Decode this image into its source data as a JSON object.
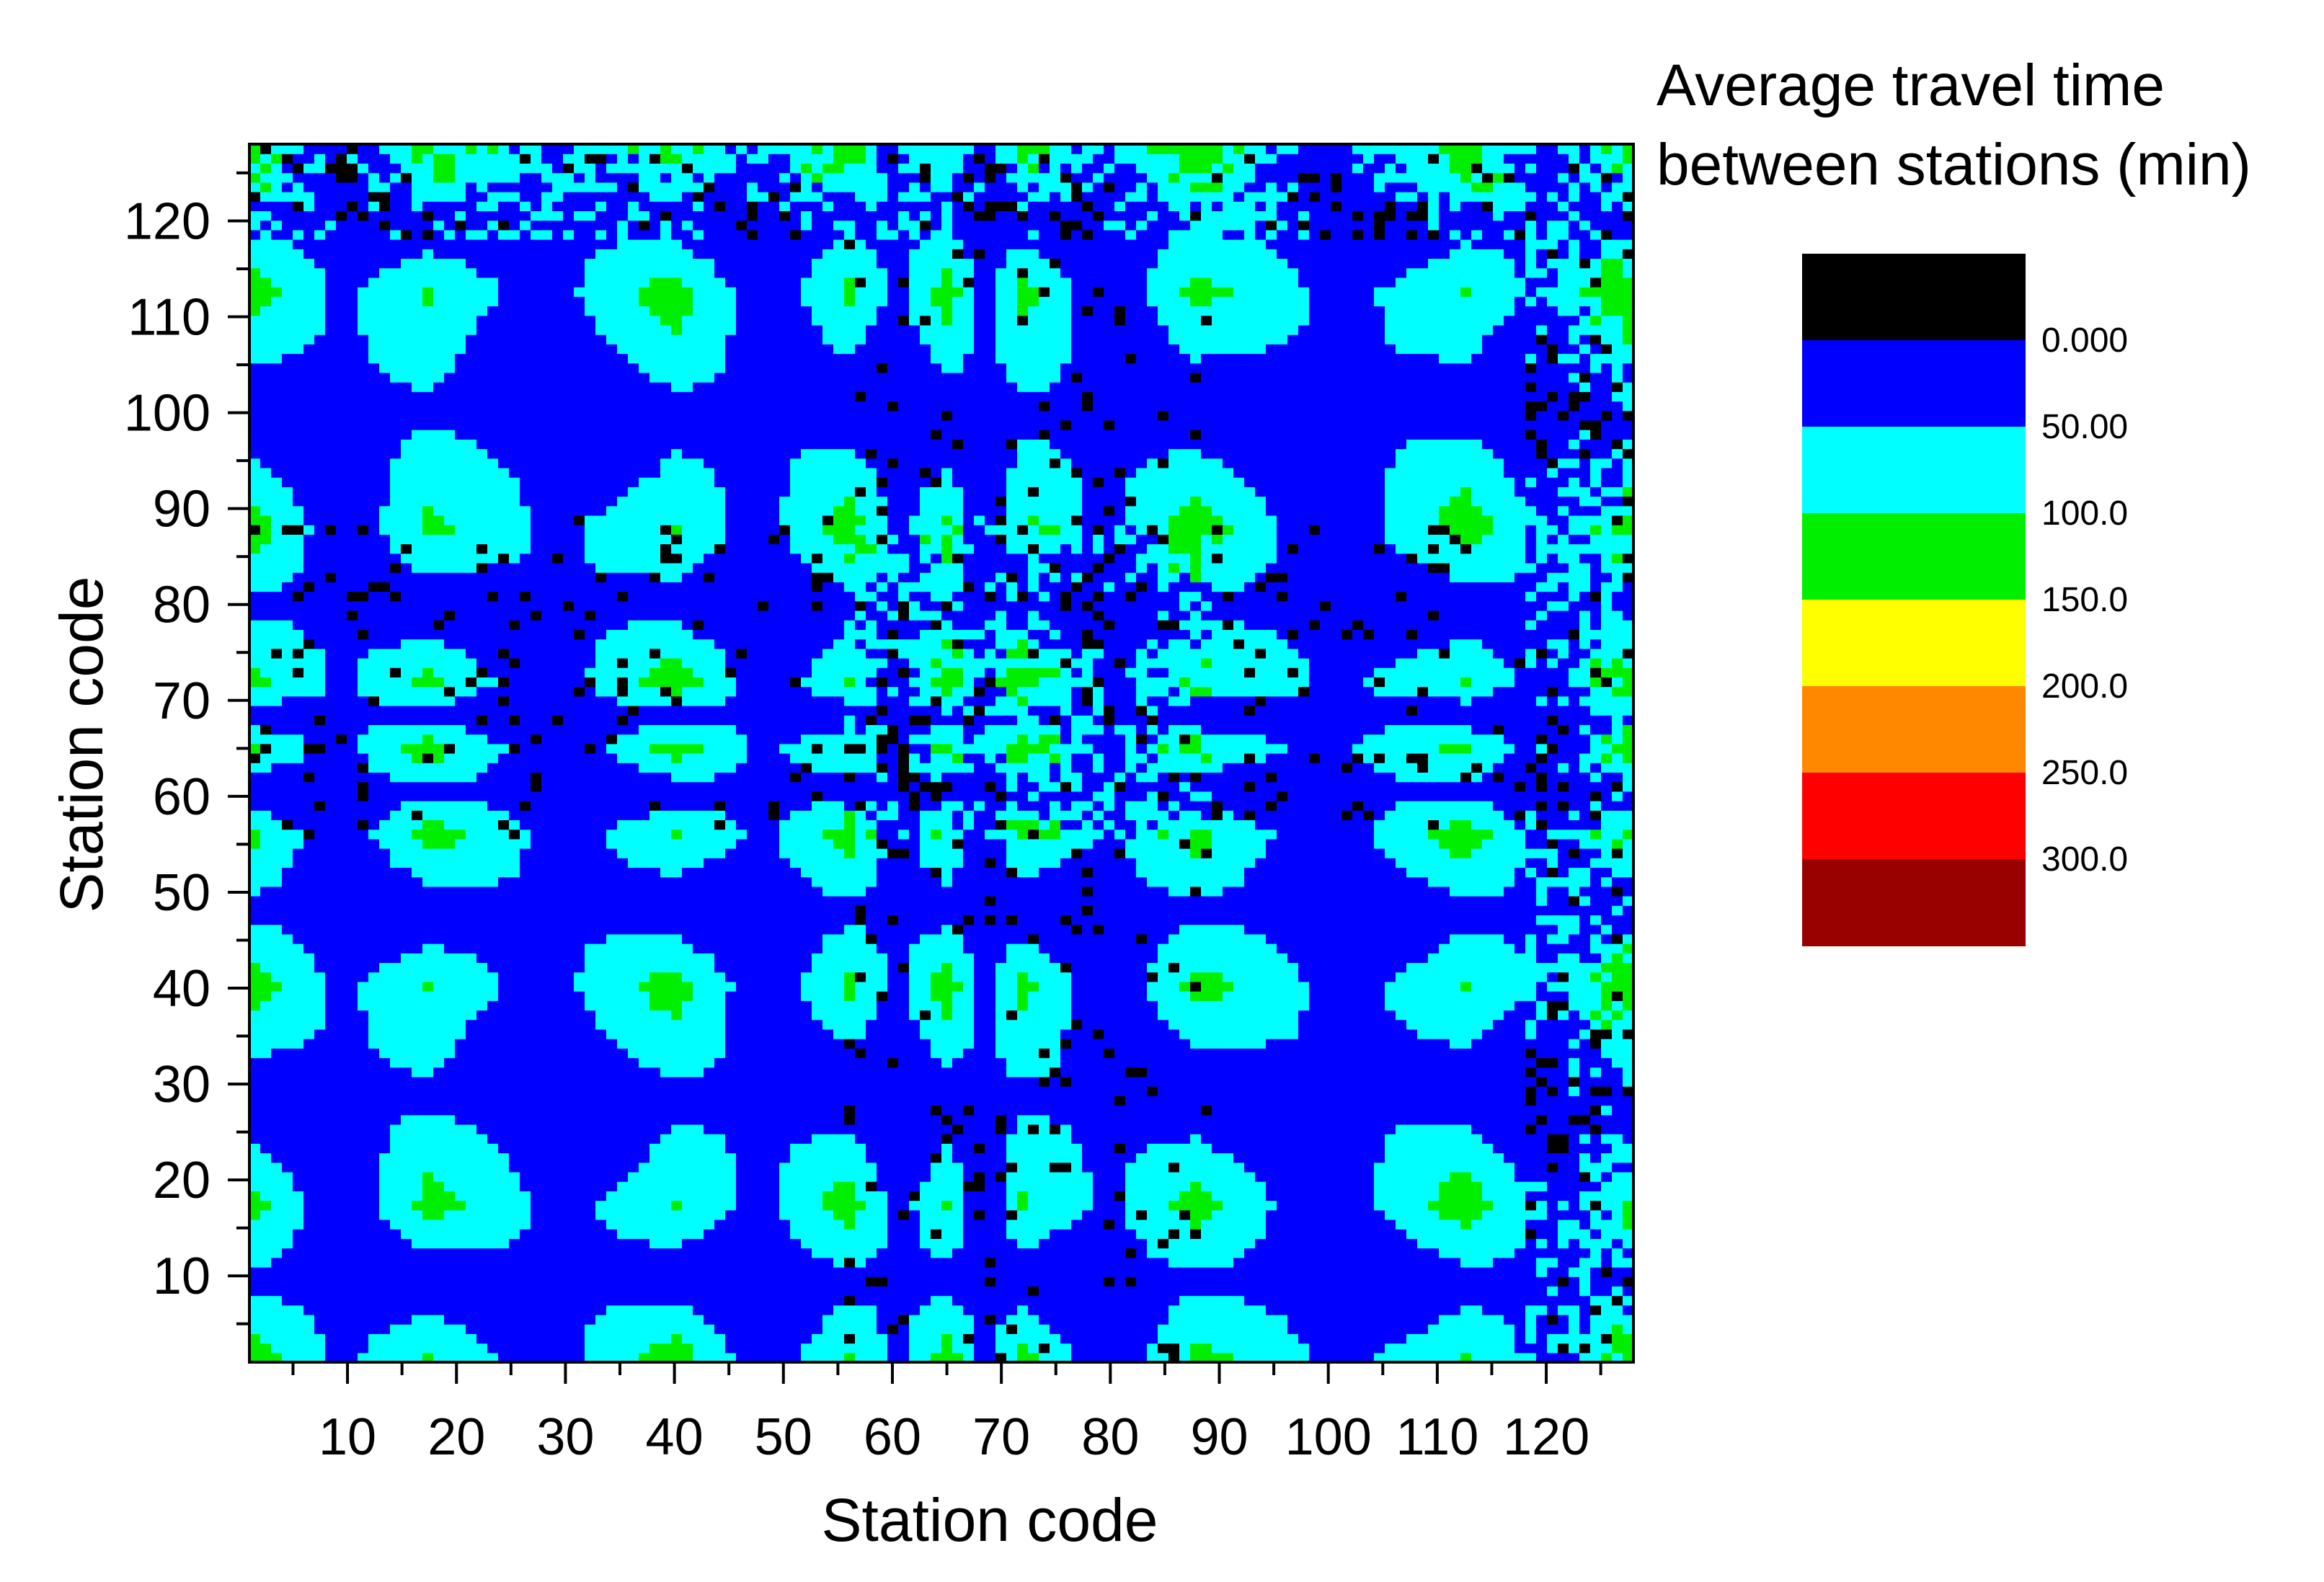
{
  "chart_data": {
    "type": "heatmap",
    "subtype": "filled-contour",
    "title": "",
    "xlabel": "Station code",
    "ylabel": "Station code",
    "xlim": [
      1,
      128
    ],
    "ylim": [
      1,
      128
    ],
    "x_ticks": [
      10,
      20,
      30,
      40,
      50,
      60,
      70,
      80,
      90,
      100,
      110,
      120
    ],
    "y_ticks": [
      10,
      20,
      30,
      40,
      50,
      60,
      70,
      80,
      90,
      100,
      110,
      120
    ],
    "block_boundaries": [
      1,
      17,
      40,
      56,
      65,
      72,
      88,
      113,
      128
    ],
    "legend": {
      "title_line1": "Average travel time",
      "title_line2": "between stations (min)",
      "placement": "right",
      "levels": [
        "0.000",
        "50.00",
        "100.0",
        "150.0",
        "200.0",
        "250.0",
        "300.0"
      ],
      "colors": [
        "#000000",
        "#0000ff",
        "#00ffff",
        "#00ee00",
        "#ffff00",
        "#ff8800",
        "#ff0000",
        "#990000"
      ]
    },
    "colors": {
      "under_0": "#000000",
      "0_50": "#0000ff",
      "50_100": "#00ffff",
      "100_150": "#00ee00",
      "150_200": "#ffff00",
      "200_250": "#ff8800",
      "250_300": "#ff0000",
      "over_300": "#990000"
    }
  }
}
